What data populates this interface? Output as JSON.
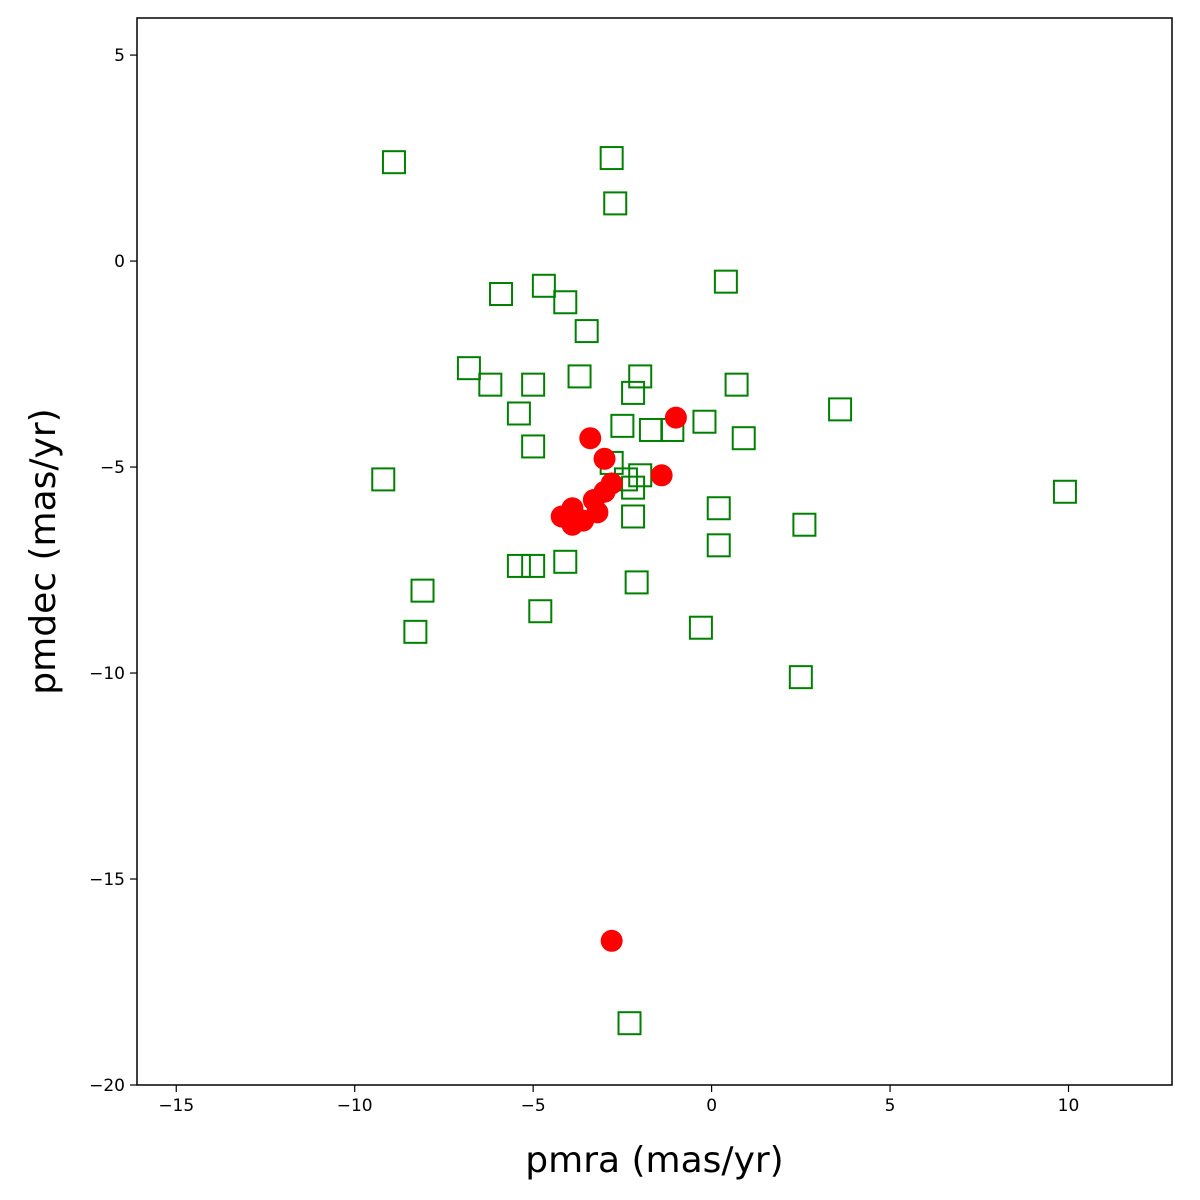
{
  "chart_data": {
    "type": "scatter",
    "title": "",
    "xlabel": "pmra (mas/yr)",
    "ylabel": "pmdec (mas/yr)",
    "xlim": [
      -16.1,
      12.9
    ],
    "ylim": [
      -20,
      5.9
    ],
    "grid": false,
    "legend": "none",
    "x_ticks": [
      {
        "value": -15,
        "label": "−15"
      },
      {
        "value": -10,
        "label": "−10"
      },
      {
        "value": -5,
        "label": "−5"
      },
      {
        "value": 0,
        "label": "0"
      },
      {
        "value": 5,
        "label": "5"
      },
      {
        "value": 10,
        "label": "10"
      }
    ],
    "y_ticks": [
      {
        "value": 5,
        "label": "5"
      },
      {
        "value": 0,
        "label": "0"
      },
      {
        "value": -5,
        "label": "−5"
      },
      {
        "value": -10,
        "label": "−10"
      },
      {
        "value": -15,
        "label": "−15"
      },
      {
        "value": -20,
        "label": "−20"
      }
    ],
    "series": [
      {
        "marker": "open-square",
        "color": "#008000",
        "points": [
          [
            -8.9,
            2.4
          ],
          [
            -2.8,
            2.5
          ],
          [
            -2.7,
            1.4
          ],
          [
            -5.9,
            -0.8
          ],
          [
            -4.7,
            -0.6
          ],
          [
            -4.1,
            -1.0
          ],
          [
            -3.5,
            -1.7
          ],
          [
            0.4,
            -0.5
          ],
          [
            -6.8,
            -2.6
          ],
          [
            -6.2,
            -3.0
          ],
          [
            -5.0,
            -3.0
          ],
          [
            -3.7,
            -2.8
          ],
          [
            -2.0,
            -2.8
          ],
          [
            -2.2,
            -3.2
          ],
          [
            0.7,
            -3.0
          ],
          [
            -5.4,
            -3.7
          ],
          [
            -2.5,
            -4.0
          ],
          [
            -1.7,
            -4.1
          ],
          [
            -1.1,
            -4.1
          ],
          [
            -0.2,
            -3.9
          ],
          [
            0.9,
            -4.3
          ],
          [
            3.6,
            -3.6
          ],
          [
            -5.0,
            -4.5
          ],
          [
            -2.8,
            -4.9
          ],
          [
            -2.4,
            -5.3
          ],
          [
            -2.0,
            -5.2
          ],
          [
            -2.2,
            -5.5
          ],
          [
            0.2,
            -6.0
          ],
          [
            -9.2,
            -5.3
          ],
          [
            9.9,
            -5.6
          ],
          [
            -2.2,
            -6.2
          ],
          [
            2.6,
            -6.4
          ],
          [
            0.2,
            -6.9
          ],
          [
            -5.4,
            -7.4
          ],
          [
            -5.0,
            -7.4
          ],
          [
            -4.1,
            -7.3
          ],
          [
            -2.1,
            -7.8
          ],
          [
            -8.1,
            -8.0
          ],
          [
            -4.8,
            -8.5
          ],
          [
            -8.3,
            -9.0
          ],
          [
            -0.3,
            -8.9
          ],
          [
            2.5,
            -10.1
          ],
          [
            -2.3,
            -18.5
          ]
        ]
      },
      {
        "marker": "filled-circle",
        "color": "#ff0000",
        "points": [
          [
            -1.0,
            -3.8
          ],
          [
            -3.4,
            -4.3
          ],
          [
            -3.0,
            -4.8
          ],
          [
            -1.4,
            -5.2
          ],
          [
            -2.8,
            -5.4
          ],
          [
            -3.0,
            -5.6
          ],
          [
            -3.3,
            -5.8
          ],
          [
            -3.9,
            -6.0
          ],
          [
            -4.2,
            -6.2
          ],
          [
            -3.6,
            -6.3
          ],
          [
            -3.9,
            -6.4
          ],
          [
            -3.2,
            -6.1
          ],
          [
            -2.8,
            -16.5
          ]
        ]
      }
    ]
  }
}
